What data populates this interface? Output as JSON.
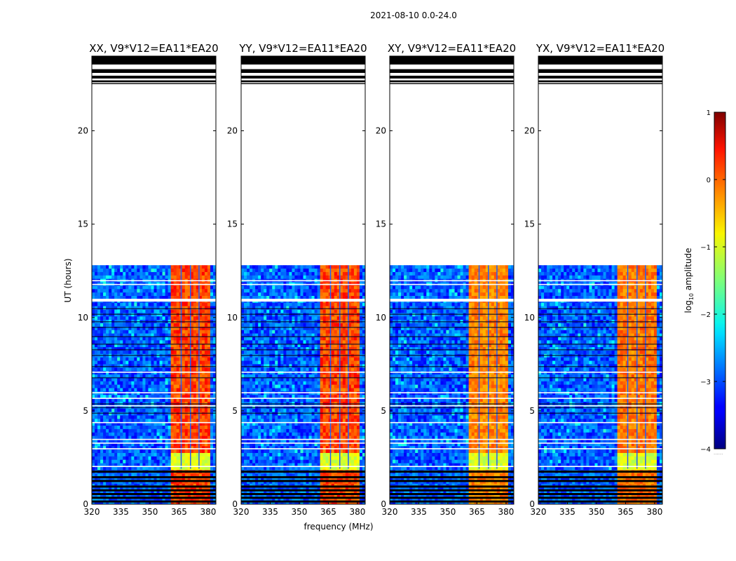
{
  "chart_data": {
    "type": "heatmap",
    "suptitle": "2021-08-10 0.0-24.0",
    "xlabel": "frequency (MHz)",
    "ylabel": "UT (hours)",
    "xlim": [
      320,
      384
    ],
    "ylim": [
      0,
      24
    ],
    "xticks": [
      320,
      335,
      350,
      365,
      380
    ],
    "yticks": [
      0,
      5,
      10,
      15,
      20
    ],
    "data_time_range_hours": [
      0,
      12.8
    ],
    "rfi_band_mhz": [
      360.5,
      380.5
    ],
    "panels": [
      {
        "title": "XX, V9*V12=EA11*EA20",
        "band_strength": 1.0
      },
      {
        "title": "YY, V9*V12=EA11*EA20",
        "band_strength": 1.0
      },
      {
        "title": "XY, V9*V12=EA11*EA20",
        "band_strength": 0.75
      },
      {
        "title": "YX, V9*V12=EA11*EA20",
        "band_strength": 0.8
      }
    ],
    "colorbar": {
      "label": "log10 amplitude",
      "label_prefix": "log",
      "label_sub": "10",
      "label_suffix": " amplitude",
      "range": [
        -4,
        1
      ],
      "ticks": [
        1,
        0,
        -1,
        -2,
        -3,
        -4
      ],
      "tick_labels": [
        "1",
        "0",
        "−1",
        "−2",
        "−3",
        "−4"
      ],
      "colormap": "jet"
    }
  }
}
